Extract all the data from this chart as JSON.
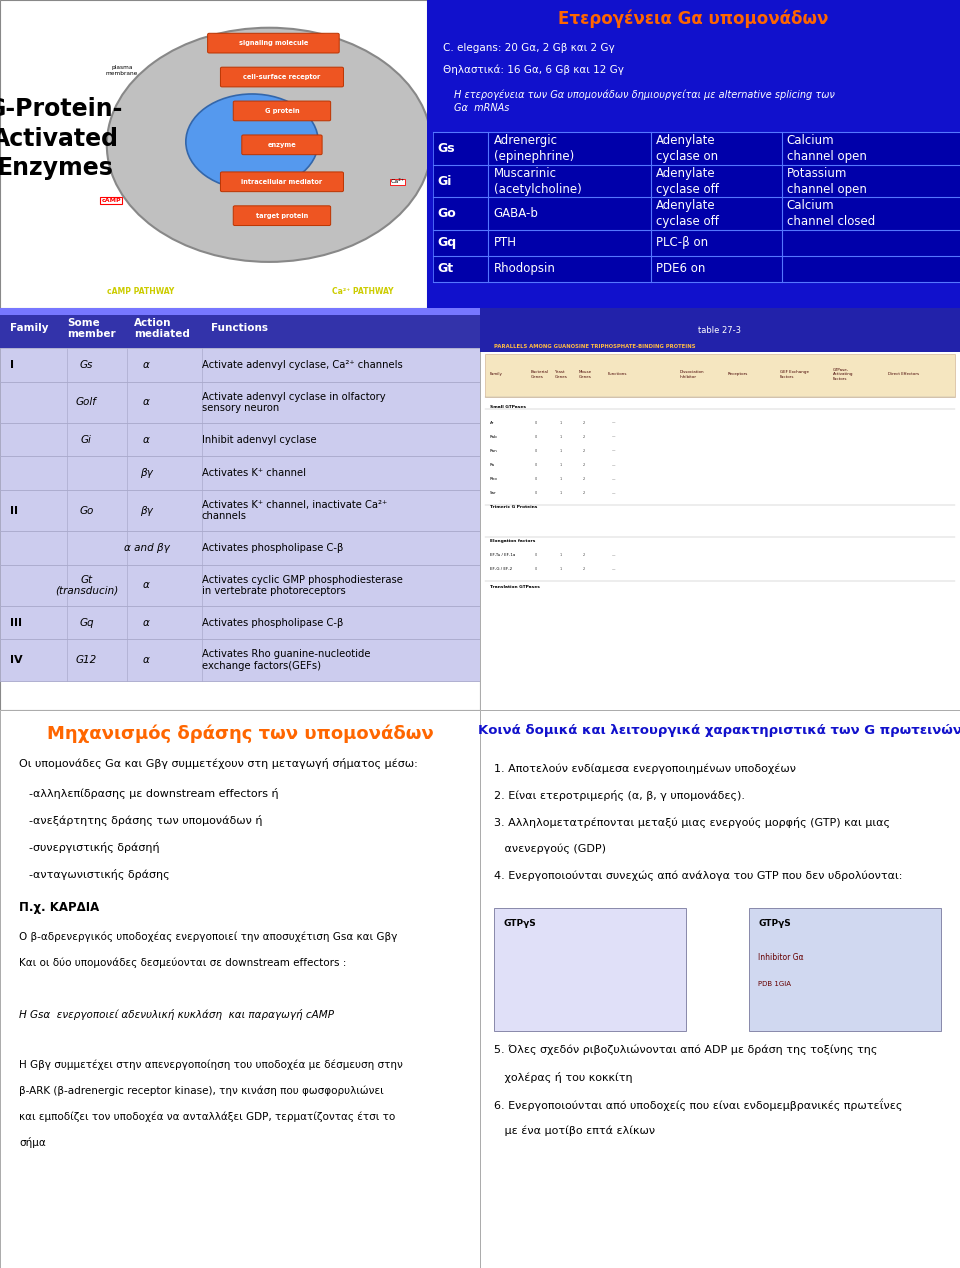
{
  "title_top_right": "Ετερογένεια Gα υπομονάδων",
  "title_color": "#FF6600",
  "bg_blue": "#1111CC",
  "table_border": "#5577FF",
  "white": "#FFFFFF",
  "elegans_text": "C. elegans: 20 Gα, 2 Gβ και 2 Gγ",
  "mammals_text": "Θηλαστικά: 16 Gα, 6 Gβ και 12 Gγ",
  "splicing_text": "H ετερογένεια των Gα υπομονάδων δημιουργείται με alternative splicing των\nGα  mRNAs",
  "table_rows": [
    {
      "col1": "Gs",
      "col2": "Adrenergic\n(epinephrine)",
      "col3": "Adenylate\ncyclase on",
      "col4": "Calcium\nchannel open"
    },
    {
      "col1": "Gi",
      "col2": "Muscarinic\n(acetylcholine)",
      "col3": "Adenylate\ncyclase off",
      "col4": "Potassium\nchannel open"
    },
    {
      "col1": "Go",
      "col2": "GABA-b",
      "col3": "Adenylate\ncyclase off",
      "col4": "Calcium\nchannel closed"
    },
    {
      "col1": "Gq",
      "col2": "PTH",
      "col3": "PLC-β on",
      "col4": ""
    },
    {
      "col1": "Gt",
      "col2": "Rhodopsin",
      "col3": "PDE6 on",
      "col4": ""
    }
  ],
  "left_title": "G-Protein-\nActivated\nEnzymes",
  "camp_label": "cAMP PATHWAY",
  "ca_label": "Ca²⁺ PATHWAY",
  "section2_title": "Μηχανισμός δράσης των υπομονάδων",
  "section2_title_color": "#FF6600",
  "section3_title": "Κοινά δομικά και λειτουργικά χαρακτηριστικά των G πρωτεινών",
  "section3_title_color": "#1111CC",
  "family_table_header": [
    "Family",
    "Some\nmember",
    "Action\nmediated",
    "Functions"
  ],
  "family_table_rows": [
    {
      "family": "I",
      "member": "Gs",
      "action": "α",
      "function": "Activate adenvyl cyclase, Ca²⁺ channels"
    },
    {
      "family": "",
      "member": "Golf",
      "action": "α",
      "function": "Activate adenvyl cyclase in olfactory\nsensory neuron"
    },
    {
      "family": "",
      "member": "Gi",
      "action": "α",
      "function": "Inhibit adenvyl cyclase"
    },
    {
      "family": "",
      "member": "",
      "action": "βγ",
      "function": "Activates K⁺ channel"
    },
    {
      "family": "II",
      "member": "Go",
      "action": "βγ",
      "function": "Activates K⁺ channel, inactivate Ca²⁺\nchannels"
    },
    {
      "family": "",
      "member": "",
      "action": "α and βγ",
      "function": "Activates phospholipase C-β"
    },
    {
      "family": "",
      "member": "Gt\n(transducin)",
      "action": "α",
      "function": "Activates cyclic GMP phosphodiesterase\nin vertebrate photoreceptors"
    },
    {
      "family": "III",
      "member": "Gq",
      "action": "α",
      "function": "Activates phospholipase C-β"
    },
    {
      "family": "IV",
      "member": "G12",
      "action": "α",
      "function": "Activates Rho guanine-nucleotide\nexchange factors(GEFs)"
    }
  ],
  "bot_left_intro": "Οι υπομονάδες Gα και Gβγ συμμετέχουν στη μεταγωγή σήματος μέσω:",
  "bot_left_bullets": [
    "-αλληλεπίδρασης με downstream effectors ή",
    "-ανεξάρτητης δράσης των υπομονάδων ή",
    "-συνεργιστικής δράσηή",
    "-ανταγωνιστικής δράσης"
  ],
  "bot_left_pi": "Π.χ. ΚΑΡΔΙΑ",
  "bot_left_pi_text": [
    "Ο β-αδρενεργικός υποδοχέας ενεργοποιεί την αποσυχέτιση Gsα και Gβγ",
    "Και οι δύο υπομονάδες δεσμεύονται σε downstream effectors :",
    "",
    "Η Gsα  ενεργοποιεί αδενυλική κυκλάση  και παραγωγή cAMP",
    "",
    "Η Gβγ συμμετέχει στην απενεργοποίηση του υποδοχέα με δέσμευση στην",
    "β-ARK (β-adrenergic receptor kinase), την κινάση που φωσφορυλιώνει",
    "και εμποδίζει τον υποδοχέα να ανταλλάξει GDP, τερματίζοντας έτσι το",
    "σήμα"
  ],
  "bot_right_list": [
    "1. Αποτελούν ενδίαμεσα ενεργοποιημένων υποδοχέων",
    "2. Είναι ετεροτριμερής (α, β, γ υπομονάδες).",
    "3. Αλληλομετατρέπονται μεταξύ μιας ενεργούς μορφής (GTP) και μιας",
    "   ανενεργούς (GDP)",
    "4. Ενεργοποιούνται συνεχώς από ανάλογα του GTP που δεν υδρολύονται:"
  ],
  "bot_right_list2": [
    "5. Όλες σχεδόν ριβοζυλιώνονται από ADP με δράση της τοξίνης της",
    "   χολέρας ή του κοκκίτη",
    "6. Ενεργοποιούνται από υποδοχείς που είναι ενδομεμβρανικές πρωτεΐνες",
    "   με ένα μοτίβο επτά ελίκων"
  ]
}
